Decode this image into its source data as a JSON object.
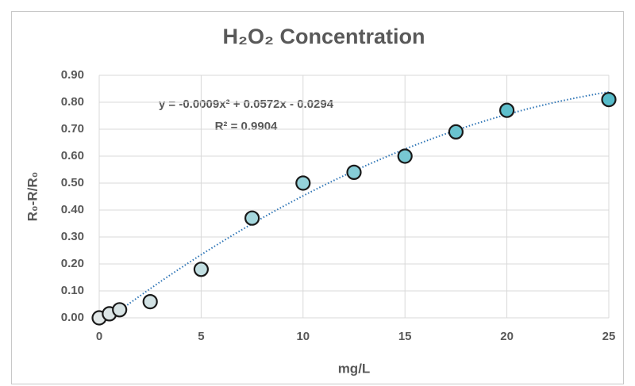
{
  "chart_data": {
    "type": "scatter",
    "title": "H₂O₂ Concentration",
    "x_label": "mg/L",
    "y_label": "R₀-R/R₀",
    "x": [
      0,
      0.5,
      1,
      2.5,
      5,
      7.5,
      10,
      12.5,
      15,
      17.5,
      20,
      25
    ],
    "values": [
      0.0,
      0.015,
      0.03,
      0.06,
      0.18,
      0.37,
      0.5,
      0.54,
      0.6,
      0.69,
      0.77,
      0.81
    ],
    "colors": [
      "#e2e8e8",
      "#dde6e7",
      "#d8e4e5",
      "#d2e2e4",
      "#c2dfe2",
      "#a6d8de",
      "#94d2da",
      "#86cdd7",
      "#78c8d3",
      "#6ac3cf",
      "#5ebfcc",
      "#56bbc9"
    ],
    "trendline": {
      "equation": "y = -0.0009x² + 0.0572x - 0.0294",
      "r_squared": "R² = 0.9904",
      "color": "#2e75b6"
    },
    "xlim": [
      0,
      25
    ],
    "xticks": [
      0,
      5,
      10,
      15,
      20,
      25
    ],
    "ylim": [
      0,
      0.9
    ],
    "yticks": [
      {
        "value": 0,
        "label": "0.00"
      },
      {
        "value": 0.1,
        "label": "0.10"
      },
      {
        "value": 0.2,
        "label": "0.20"
      },
      {
        "value": 0.3,
        "label": "0.30"
      },
      {
        "value": 0.4,
        "label": "0.40"
      },
      {
        "value": 0.5,
        "label": "0.50"
      },
      {
        "value": 0.6,
        "label": "0.60"
      },
      {
        "value": 0.7,
        "label": "0.70"
      },
      {
        "value": 0.8,
        "label": "0.80"
      },
      {
        "value": 0.9,
        "label": "0.90"
      }
    ],
    "grid": true
  }
}
